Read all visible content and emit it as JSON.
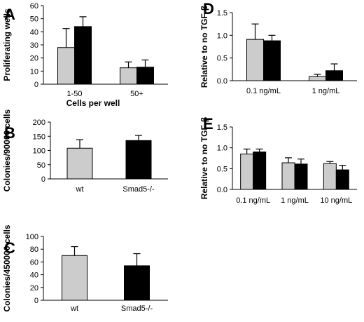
{
  "colors": {
    "wt": "#cccccc",
    "smad": "#000000",
    "axis": "#000000"
  },
  "chart_data": [
    {
      "panel": "A",
      "type": "bar",
      "categories": [
        "1-50",
        "50+"
      ],
      "series": [
        {
          "values": [
            28,
            12.5
          ],
          "errors": [
            14.5,
            4.5
          ]
        },
        {
          "values": [
            44,
            13
          ],
          "errors": [
            7.5,
            5.5
          ]
        }
      ],
      "ylim": [
        0,
        60
      ],
      "yticks": [
        "0",
        "10",
        "20",
        "30",
        "40",
        "50",
        "60"
      ],
      "ylabel": "Proliferating wells",
      "xlabel": "Cells per well"
    },
    {
      "panel": "B",
      "type": "bar",
      "categories": [
        "wt",
        "Smad5-/-"
      ],
      "series": [
        {
          "values": [
            108,
            135
          ],
          "errors": [
            30,
            18
          ]
        }
      ],
      "ylim": [
        0,
        200
      ],
      "yticks": [
        "0",
        "50",
        "100",
        "150",
        "200"
      ],
      "ylabel": "Colonies/90000 cells",
      "xlabel": ""
    },
    {
      "panel": "C",
      "type": "bar",
      "categories": [
        "wt",
        "Smad5-/-"
      ],
      "series": [
        {
          "values": [
            70,
            54
          ],
          "errors": [
            14,
            19
          ]
        }
      ],
      "ylim": [
        0,
        100
      ],
      "yticks": [
        "0",
        "20",
        "40",
        "60",
        "80",
        "100"
      ],
      "ylabel": "Colonies/450000 cells",
      "xlabel": ""
    },
    {
      "panel": "D",
      "type": "bar",
      "categories": [
        "0.1 ng/mL",
        "1 ng/mL"
      ],
      "series": [
        {
          "values": [
            0.91,
            0.09
          ],
          "errors": [
            0.34,
            0.05
          ]
        },
        {
          "values": [
            0.88,
            0.22
          ],
          "errors": [
            0.12,
            0.15
          ]
        }
      ],
      "ylim": [
        0,
        1.5
      ],
      "yticks": [
        "0.0",
        "0.5",
        "1.0",
        "1.5"
      ],
      "ylabel": "Relative to no TGF-β",
      "xlabel": ""
    },
    {
      "panel": "E",
      "type": "bar",
      "categories": [
        "0.1 ng/mL",
        "1 ng/mL",
        "10 ng/mL"
      ],
      "series": [
        {
          "values": [
            0.85,
            0.64,
            0.62
          ],
          "errors": [
            0.12,
            0.12,
            0.05
          ]
        },
        {
          "values": [
            0.9,
            0.61,
            0.47
          ],
          "errors": [
            0.07,
            0.12,
            0.11
          ]
        }
      ],
      "ylim": [
        0,
        1.5
      ],
      "yticks": [
        "0.0",
        "0.5",
        "1.0",
        "1.5"
      ],
      "ylabel": "Relative to no TGF-β",
      "xlabel": ""
    }
  ]
}
